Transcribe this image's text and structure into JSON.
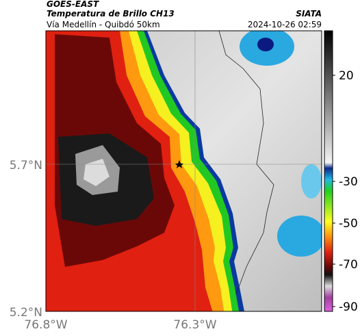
{
  "header": {
    "satellite": "GOES-EAST",
    "title": "Temperatura de Brillo CH13",
    "subtitle": "Vía Medellín - Quibdó 50km",
    "source": "SIATA",
    "timestamp": "2024-10-26 02:59"
  },
  "map": {
    "lat_labels": [
      "5.7°N",
      "5.2°N"
    ],
    "lon_labels": [
      "76.8°W",
      "76.3°W"
    ]
  },
  "colorbar": {
    "tick_labels": [
      "20",
      "-30",
      "-50",
      "-70",
      "-90"
    ]
  }
}
